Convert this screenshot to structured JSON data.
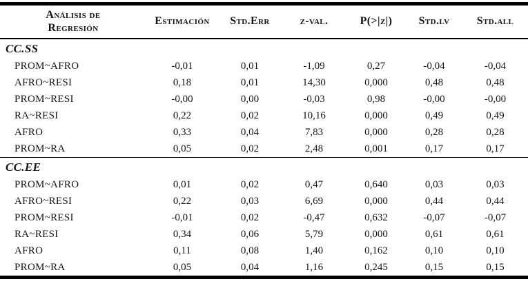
{
  "table": {
    "corner": {
      "line1": "Análisis de",
      "line2": "Regresión"
    },
    "columns": [
      "Estimación",
      "Std.Err",
      "z-val.",
      "P(>|z|)",
      "Std.lv",
      "Std.all"
    ],
    "sections": [
      {
        "label": "CC.SS",
        "rows": [
          {
            "name": "PROM~AFRO",
            "values": [
              "-0,01",
              "0,01",
              "-1,09",
              "0,27",
              "-0,04",
              "-0,04"
            ]
          },
          {
            "name": "AFRO~RESI",
            "values": [
              "0,18",
              "0,01",
              "14,30",
              "0,000",
              "0,48",
              "0,48"
            ]
          },
          {
            "name": "PROM~RESI",
            "values": [
              "-0,00",
              "0,00",
              "-0,03",
              "0,98",
              "-0,00",
              "-0,00"
            ]
          },
          {
            "name": "RA~RESI",
            "values": [
              "0,22",
              "0,02",
              "10,16",
              "0,000",
              "0,49",
              "0,49"
            ]
          },
          {
            "name": "AFRO",
            "values": [
              "0,33",
              "0,04",
              "7,83",
              "0,000",
              "0,28",
              "0,28"
            ]
          },
          {
            "name": "PROM~RA",
            "values": [
              "0,05",
              "0,02",
              "2,48",
              "0,001",
              "0,17",
              "0,17"
            ]
          }
        ]
      },
      {
        "label": "CC.EE",
        "rows": [
          {
            "name": "PROM~AFRO",
            "values": [
              "0,01",
              "0,02",
              "0,47",
              "0,640",
              "0,03",
              "0,03"
            ]
          },
          {
            "name": "AFRO~RESI",
            "values": [
              "0,22",
              "0,03",
              "6,69",
              "0,000",
              "0,44",
              "0,44"
            ]
          },
          {
            "name": "PROM~RESI",
            "values": [
              "-0,01",
              "0,02",
              "-0,47",
              "0,632",
              "-0,07",
              "-0,07"
            ]
          },
          {
            "name": "RA~RESI",
            "values": [
              "0,34",
              "0,06",
              "5,79",
              "0,000",
              "0,61",
              "0,61"
            ]
          },
          {
            "name": "AFRO",
            "values": [
              "0,11",
              "0,08",
              "1,40",
              "0,162",
              "0,10",
              "0,10"
            ]
          },
          {
            "name": "PROM~RA",
            "values": [
              "0,05",
              "0,04",
              "1,16",
              "0,245",
              "0,15",
              "0,15"
            ]
          }
        ]
      }
    ]
  }
}
